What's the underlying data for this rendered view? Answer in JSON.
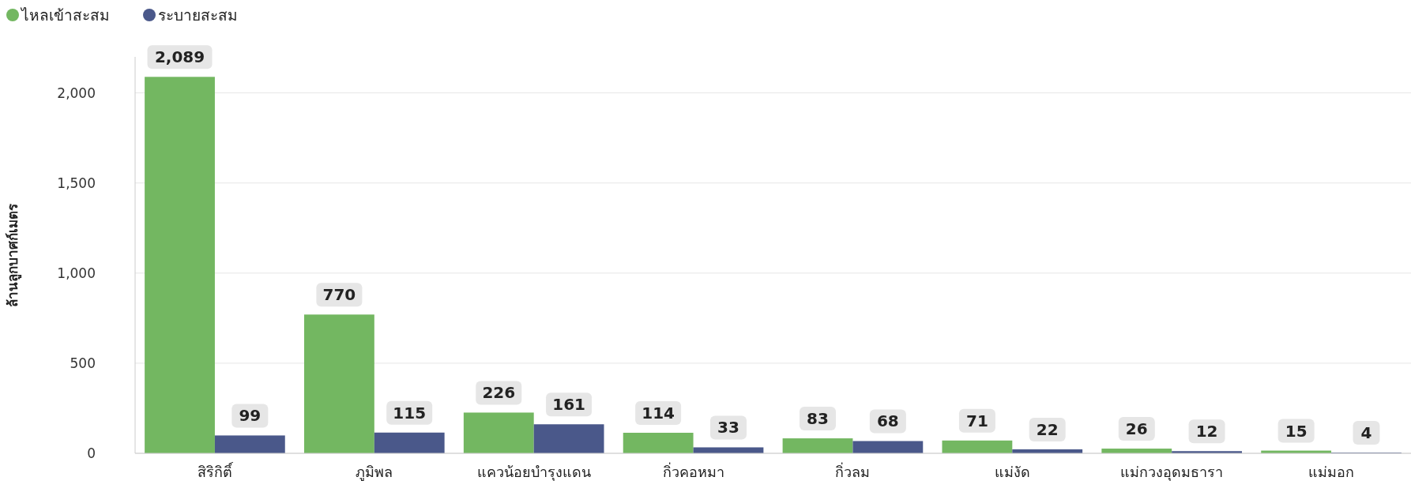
{
  "chart_data": {
    "type": "bar",
    "ylabel": "ล้านลูกบาศก์เมตร",
    "categories": [
      "สิริกิติ์",
      "ภูมิพล",
      "แควน้อยบำรุงแดน",
      "กิ่วคอหมา",
      "กิ่วลม",
      "แม่งัด",
      "แม่กวงอุดมธารา",
      "แม่มอก"
    ],
    "series": [
      {
        "name": "ไหลเข้าสะสม",
        "color": "#73b761",
        "values": [
          2089,
          770,
          226,
          114,
          83,
          71,
          26,
          15
        ],
        "value_labels": [
          "2,089",
          "770",
          "226",
          "114",
          "83",
          "71",
          "26",
          "15"
        ]
      },
      {
        "name": "ระบายสะสม",
        "color": "#4a588a",
        "values": [
          99,
          115,
          161,
          33,
          68,
          22,
          12,
          4
        ],
        "value_labels": [
          "99",
          "115",
          "161",
          "33",
          "68",
          "22",
          "12",
          "4"
        ]
      }
    ],
    "ylim": [
      0,
      2200
    ],
    "yticks": [
      0,
      {
        "value": 500,
        "label": "500"
      },
      {
        "value": 1000,
        "label": "1,000"
      },
      {
        "value": 1500,
        "label": "1,500"
      },
      {
        "value": 2000,
        "label": "2,000"
      }
    ],
    "grid": "y",
    "legend": "top left"
  }
}
